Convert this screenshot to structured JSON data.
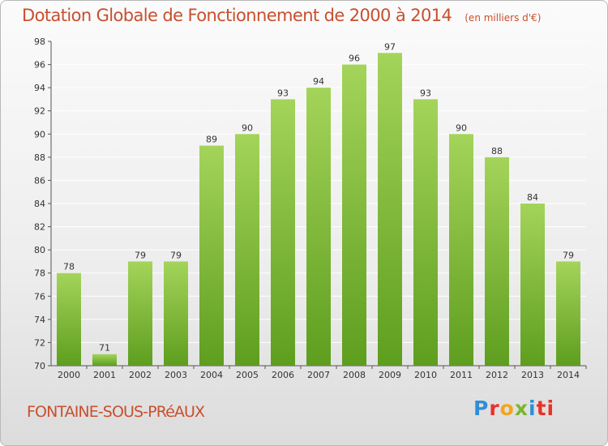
{
  "header": {
    "title": "Dotation Globale de Fonctionnement de 2000 à 2014",
    "unit": "(en milliers d'€)"
  },
  "footer": {
    "commune": "FONTAINE-SOUS-PRéAUX",
    "logo_letters": [
      "P",
      "r",
      "o",
      "x",
      "i",
      "ti"
    ]
  },
  "colors": {
    "title": "#c94f2e",
    "bar_top": "#a4d45a",
    "bar_bottom": "#5e9e1e",
    "grid": "#ffffff",
    "axis": "#555555"
  },
  "chart_data": {
    "type": "bar",
    "title": "Dotation Globale de Fonctionnement de 2000 à 2014",
    "subtitle": "(en milliers d'€)",
    "xlabel": "",
    "ylabel": "",
    "categories": [
      "2000",
      "2001",
      "2002",
      "2003",
      "2004",
      "2005",
      "2006",
      "2007",
      "2008",
      "2009",
      "2010",
      "2011",
      "2012",
      "2013",
      "2014"
    ],
    "values": [
      78,
      71,
      79,
      79,
      89,
      90,
      93,
      94,
      96,
      97,
      93,
      90,
      88,
      84,
      79
    ],
    "data_labels": [
      "78",
      "71",
      "79",
      "79",
      "89",
      "90",
      "93",
      "94",
      "96",
      "97",
      "93",
      "90",
      "88",
      "84",
      "79"
    ],
    "ylim": [
      70,
      98
    ],
    "yticks": [
      70,
      72,
      74,
      76,
      78,
      80,
      82,
      84,
      86,
      88,
      90,
      92,
      94,
      96,
      98
    ],
    "grid": true,
    "legend": "none"
  }
}
